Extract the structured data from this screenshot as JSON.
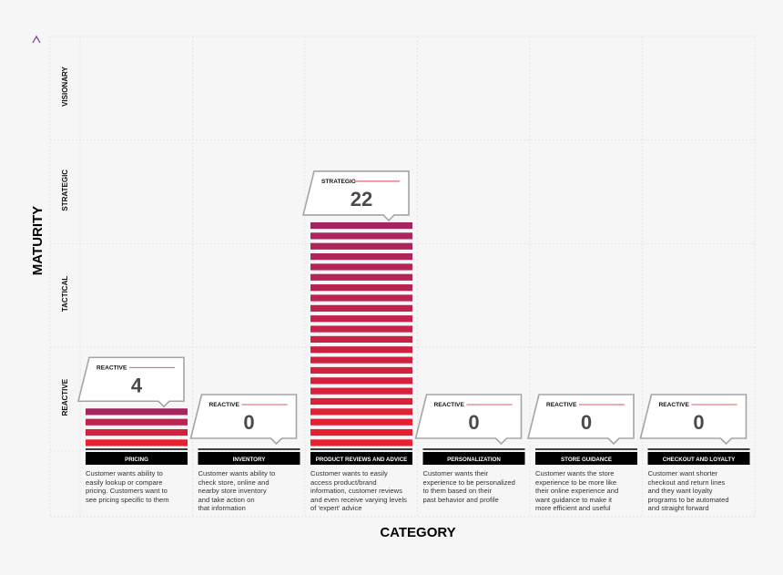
{
  "chart_data": {
    "type": "bar",
    "xlabel": "CATEGORY",
    "ylabel": "MATURITY",
    "levels": [
      "REACTIVE",
      "TACTICAL",
      "STRATEGIC",
      "VISIONARY"
    ],
    "categories": [
      "PRICING",
      "INVENTORY",
      "PRODUCT REVIEWS AND ADVICE",
      "PERSONALIZATION",
      "STORE GUIDANCE",
      "CHECKOUT AND LOYALTY"
    ],
    "values": [
      4,
      0,
      22,
      0,
      0,
      0
    ],
    "value_labels": [
      "REACTIVE",
      "REACTIVE",
      "STRATEGIC",
      "REACTIVE",
      "REACTIVE",
      "REACTIVE"
    ],
    "descriptions": [
      [
        "Customer wants ability to",
        "easily lookup or compare",
        "pricing. Customers want to",
        "see pricing specific to them"
      ],
      [
        "Customer wants ability to",
        "check store, online and",
        "nearby store inventory",
        "and take action on",
        "that information"
      ],
      [
        "Customer wants to easily",
        "access product/brand",
        "information, customer reviews",
        "and even receive varying levels",
        "of 'expert' advice"
      ],
      [
        "Customer wants their",
        "experience to be personalized",
        "to them based on their",
        "past behavior and profile"
      ],
      [
        "Customer wants the store",
        "experience to be more like",
        "their online experience and",
        "want guidance to make it",
        "more efficient and useful"
      ],
      [
        "Customer want shorter",
        "checkout and return lines",
        "and they want loyalty",
        "programs to be automated",
        "and straight forward"
      ]
    ]
  },
  "colors": {
    "bar_bottom": "#e8202f",
    "bar_top": "#a52560",
    "axis_line": "#d0202e",
    "axis_arrow": "#7a3a8a",
    "category_band": "#000000",
    "grid": "#dddddd"
  }
}
